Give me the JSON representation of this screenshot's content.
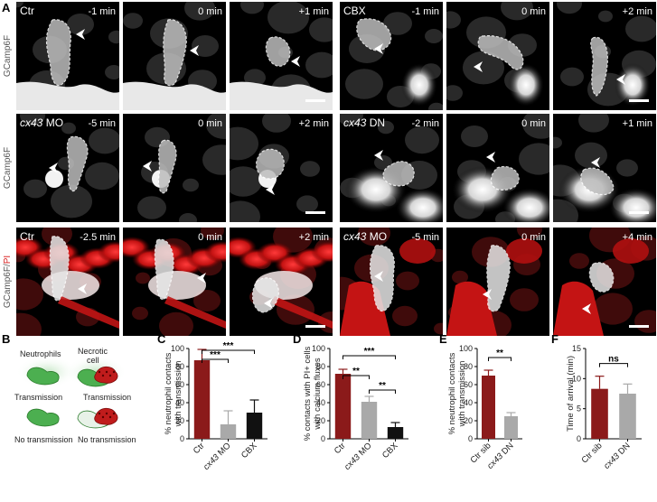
{
  "panels": {
    "A": {
      "letter": "A",
      "rows": [
        {
          "ylabel": "GCamp6F",
          "ylabel_pi": "",
          "left": {
            "condition": "Ctr",
            "italic": false,
            "times": [
              "-1 min",
              "0 min",
              "+1 min"
            ]
          },
          "right": {
            "condition": "CBX",
            "italic": false,
            "times": [
              "-1 min",
              "0 min",
              "+2 min"
            ]
          }
        },
        {
          "ylabel": "GCamp6F",
          "ylabel_pi": "",
          "left": {
            "condition": "cx43",
            "italic": true,
            "suffix": " MO",
            "times": [
              "-5 min",
              "0 min",
              "+2 min"
            ]
          },
          "right": {
            "condition": "cx43",
            "italic": true,
            "suffix": " DN",
            "times": [
              "-2 min",
              "0 min",
              "+1 min"
            ]
          }
        },
        {
          "ylabel": "GCamp6F/",
          "ylabel_pi": "PI",
          "left": {
            "condition": "Ctr",
            "italic": false,
            "times": [
              "-2.5 min",
              "0 min",
              "+2 min"
            ]
          },
          "right": {
            "condition": "cx43",
            "italic": true,
            "suffix": " MO",
            "times": [
              "-5 min",
              "0 min",
              "+4 min"
            ]
          }
        }
      ]
    },
    "B": {
      "letter": "B",
      "neutrophils": "Neutrophils",
      "necrotic": "Necrotic",
      "cell": "cell",
      "transmission": "Transmission",
      "no_transmission": "No transmission"
    }
  },
  "colors": {
    "dark_red": "#8b1a1a",
    "gray": "#a9a9a9",
    "black": "#111111",
    "green": "#3aa63a",
    "red": "#d81e1e"
  },
  "chart_data": [
    {
      "panel": "C",
      "type": "bar",
      "ylabel": [
        "% neutrophil contacts",
        "with transmission"
      ],
      "categories": [
        "Ctr",
        "cx43 MO",
        "CBX"
      ],
      "italic": [
        false,
        true,
        false
      ],
      "values": [
        87,
        16,
        29
      ],
      "errors": [
        12,
        15,
        14
      ],
      "ylim": [
        0,
        100
      ],
      "yticks": [
        0,
        20,
        40,
        60,
        80,
        100
      ],
      "colors": [
        "#8b1a1a",
        "#a9a9a9",
        "#111111"
      ],
      "sig": [
        {
          "from": 0,
          "to": 1,
          "label": "***"
        },
        {
          "from": 0,
          "to": 2,
          "label": "***"
        }
      ]
    },
    {
      "panel": "D",
      "type": "bar",
      "ylabel": [
        "% contacts with PI+ cells",
        "with calcium fluxes"
      ],
      "categories": [
        "Ctr",
        "cx43 MO",
        "CBX"
      ],
      "italic": [
        false,
        true,
        false
      ],
      "values": [
        72,
        41,
        13
      ],
      "errors": [
        5,
        6,
        5
      ],
      "ylim": [
        0,
        100
      ],
      "yticks": [
        0,
        20,
        40,
        60,
        80,
        100
      ],
      "colors": [
        "#8b1a1a",
        "#a9a9a9",
        "#111111"
      ],
      "sig": [
        {
          "from": 0,
          "to": 1,
          "label": "**"
        },
        {
          "from": 0,
          "to": 2,
          "label": "***"
        },
        {
          "from": 1,
          "to": 2,
          "label": "**"
        }
      ]
    },
    {
      "panel": "E",
      "type": "bar",
      "ylabel": [
        "% neutrophil contacts",
        "with transmission"
      ],
      "categories": [
        "Ctr sib",
        "cx43 DN"
      ],
      "italic": [
        false,
        true
      ],
      "values": [
        70,
        25
      ],
      "errors": [
        6,
        4
      ],
      "ylim": [
        0,
        100
      ],
      "yticks": [
        0,
        20,
        40,
        60,
        80,
        100
      ],
      "colors": [
        "#8b1a1a",
        "#a9a9a9"
      ],
      "sig": [
        {
          "from": 0,
          "to": 1,
          "label": "**"
        }
      ]
    },
    {
      "panel": "F",
      "type": "bar",
      "ylabel": [
        "Time of arrival (min)"
      ],
      "categories": [
        "Ctr sib",
        "cx43 DN"
      ],
      "italic": [
        false,
        true
      ],
      "values": [
        8.3,
        7.5
      ],
      "errors": [
        2.1,
        1.6
      ],
      "ylim": [
        0,
        15
      ],
      "yticks": [
        0,
        5,
        10,
        15
      ],
      "colors": [
        "#8b1a1a",
        "#a9a9a9"
      ],
      "sig": [
        {
          "from": 0,
          "to": 1,
          "label": "ns"
        }
      ]
    }
  ]
}
